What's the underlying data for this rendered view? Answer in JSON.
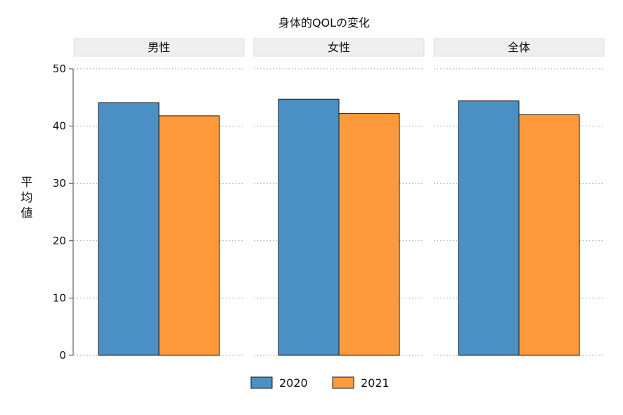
{
  "chart_data": {
    "type": "bar",
    "title": "身体的QOLの変化",
    "ylabel": "平均値",
    "ylim": [
      0,
      50
    ],
    "yticks": [
      0,
      10,
      20,
      30,
      40,
      50
    ],
    "grid": true,
    "legend_position": "bottom",
    "series": [
      {
        "name": "2020",
        "color": "#4a90c4"
      },
      {
        "name": "2021",
        "color": "#ff9a3c"
      }
    ],
    "panels": [
      {
        "label": "男性",
        "values": [
          44.1,
          41.8
        ]
      },
      {
        "label": "女性",
        "values": [
          44.7,
          42.2
        ]
      },
      {
        "label": "全体",
        "values": [
          44.4,
          42.0
        ]
      }
    ]
  }
}
